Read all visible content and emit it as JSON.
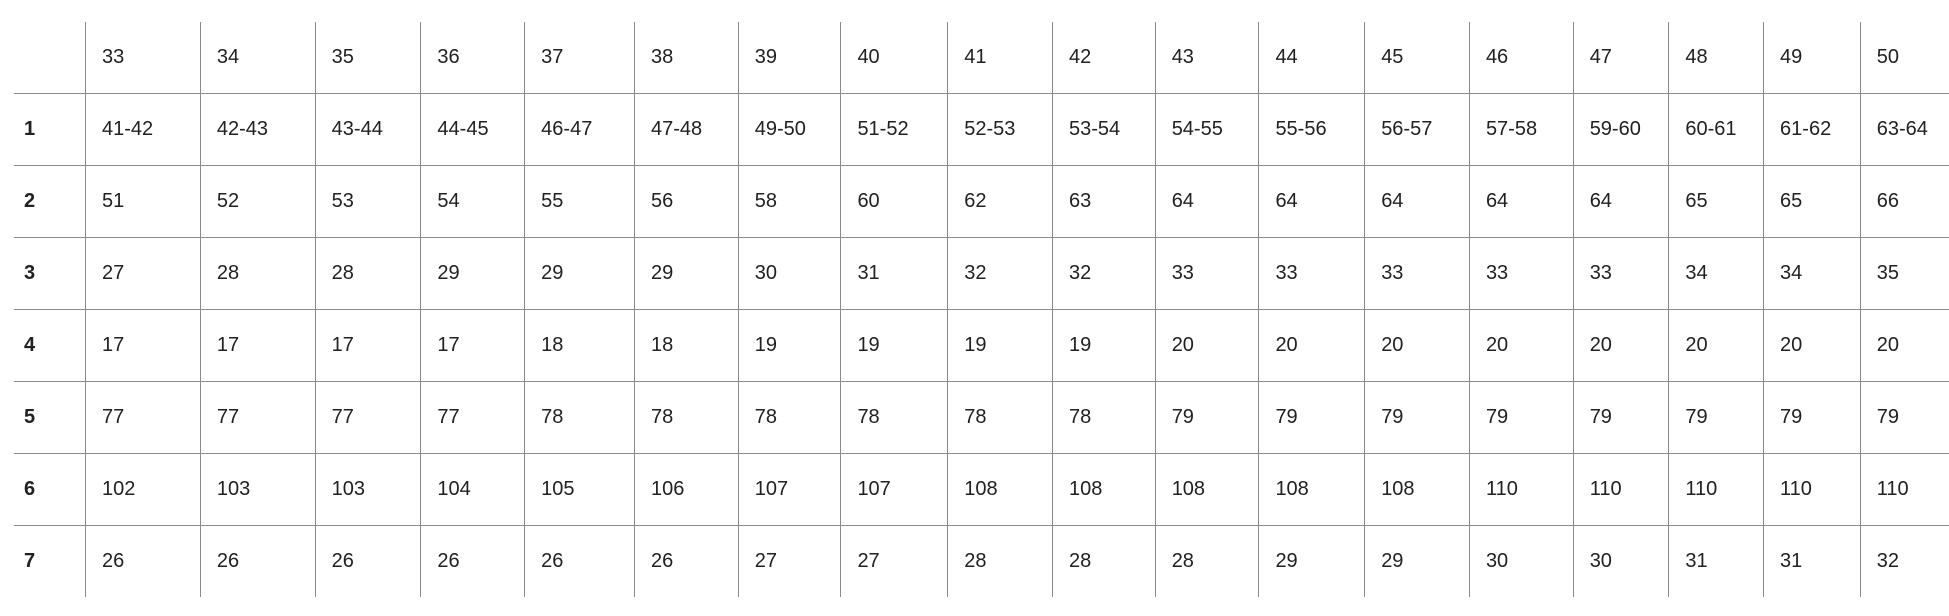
{
  "table": {
    "columns": [
      "",
      "33",
      "34",
      "35",
      "36",
      "37",
      "38",
      "39",
      "40",
      "41",
      "42",
      "43",
      "44",
      "45",
      "46",
      "47",
      "48",
      "49",
      "50"
    ],
    "rows": [
      {
        "label": "1",
        "cells": [
          "41-42",
          "42-43",
          "43-44",
          "44-45",
          "46-47",
          "47-48",
          "49-50",
          "51-52",
          "52-53",
          "53-54",
          "54-55",
          "55-56",
          "56-57",
          "57-58",
          "59-60",
          "60-61",
          "61-62",
          "63-64"
        ]
      },
      {
        "label": "2",
        "cells": [
          "51",
          "52",
          "53",
          "54",
          "55",
          "56",
          "58",
          "60",
          "62",
          "63",
          "64",
          "64",
          "64",
          "64",
          "64",
          "65",
          "65",
          "66"
        ]
      },
      {
        "label": "3",
        "cells": [
          "27",
          "28",
          "28",
          "29",
          "29",
          "29",
          "30",
          "31",
          "32",
          "32",
          "33",
          "33",
          "33",
          "33",
          "33",
          "34",
          "34",
          "35"
        ]
      },
      {
        "label": "4",
        "cells": [
          "17",
          "17",
          "17",
          "17",
          "18",
          "18",
          "19",
          "19",
          "19",
          "19",
          "20",
          "20",
          "20",
          "20",
          "20",
          "20",
          "20",
          "20"
        ]
      },
      {
        "label": "5",
        "cells": [
          "77",
          "77",
          "77",
          "77",
          "78",
          "78",
          "78",
          "78",
          "78",
          "78",
          "79",
          "79",
          "79",
          "79",
          "79",
          "79",
          "79",
          "79"
        ]
      },
      {
        "label": "6",
        "cells": [
          "102",
          "103",
          "103",
          "104",
          "105",
          "106",
          "107",
          "107",
          "108",
          "108",
          "108",
          "108",
          "108",
          "110",
          "110",
          "110",
          "110",
          "110"
        ]
      },
      {
        "label": "7",
        "cells": [
          "26",
          "26",
          "26",
          "26",
          "26",
          "26",
          "27",
          "27",
          "28",
          "28",
          "28",
          "29",
          "29",
          "30",
          "30",
          "31",
          "31",
          "32"
        ]
      }
    ]
  }
}
